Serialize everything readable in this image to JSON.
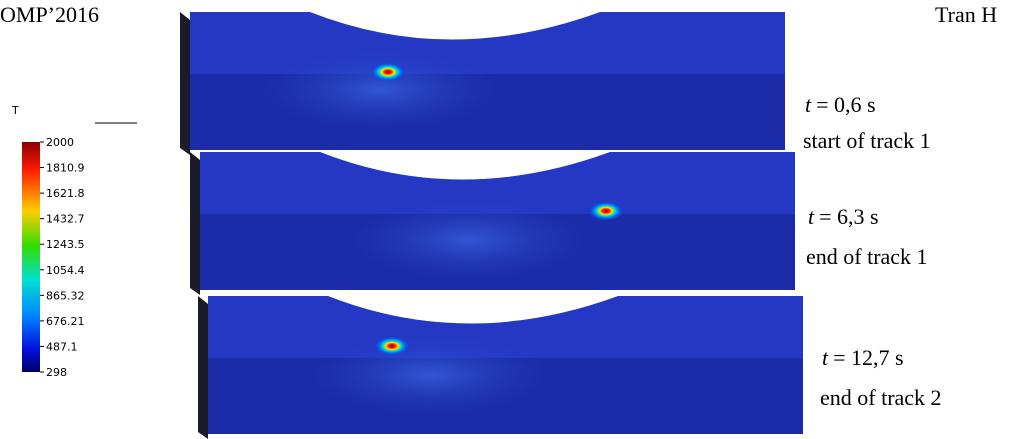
{
  "header": {
    "left": "OMP’2016",
    "right": "Tran H"
  },
  "colorbar": {
    "label": "T",
    "ticks": [
      2000,
      1810.9,
      1621.8,
      1432.7,
      1243.5,
      1054.4,
      865.32,
      676.21,
      487.1,
      298
    ]
  },
  "panels": [
    {
      "time_symbol": "t",
      "time_value": "= 0,6 s",
      "caption": "start of track 1"
    },
    {
      "time_symbol": "t",
      "time_value": "= 6,3 s",
      "caption": "end of track 1"
    },
    {
      "time_symbol": "t",
      "time_value": "= 12,7 s",
      "caption": "end of track 2"
    }
  ]
}
